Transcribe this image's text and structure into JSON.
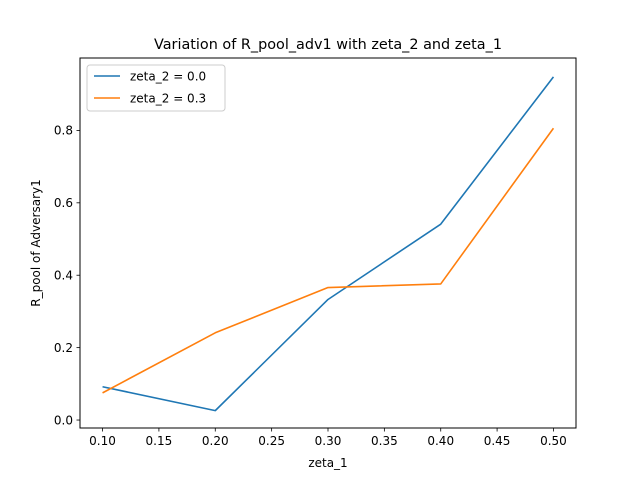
{
  "chart_data": {
    "type": "line",
    "title": "Variation of R_pool_adv1 with zeta_2 and zeta_1",
    "xlabel": "zeta_1",
    "ylabel": "R_pool of Adversary1",
    "xlim": [
      0.08,
      0.52
    ],
    "ylim": [
      -0.022,
      1.0
    ],
    "x_ticks": [
      "0.10",
      "0.15",
      "0.20",
      "0.25",
      "0.30",
      "0.35",
      "0.40",
      "0.45",
      "0.50"
    ],
    "y_ticks": [
      "0.0",
      "0.2",
      "0.4",
      "0.6",
      "0.8"
    ],
    "grid": false,
    "legend_position": "top-left",
    "x": [
      0.1,
      0.2,
      0.3,
      0.4,
      0.5
    ],
    "series": [
      {
        "name": "zeta_2 = 0.0",
        "color": "#1f77b4",
        "values": [
          0.092,
          0.026,
          0.333,
          0.541,
          0.948
        ]
      },
      {
        "name": "zeta_2 = 0.3",
        "color": "#ff7f0e",
        "values": [
          0.075,
          0.241,
          0.366,
          0.376,
          0.806
        ]
      }
    ]
  }
}
